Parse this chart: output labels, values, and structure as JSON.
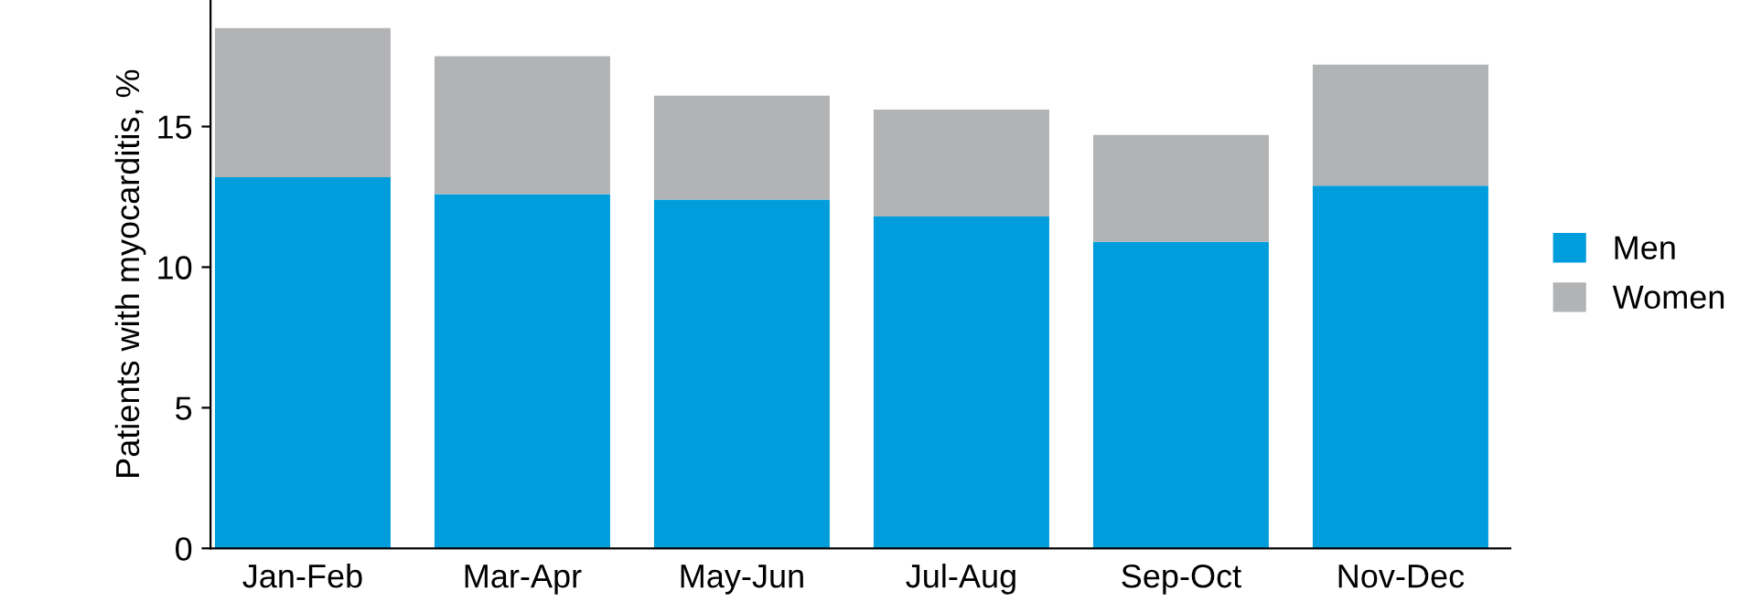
{
  "chart_data": {
    "type": "bar",
    "stacked": true,
    "ylabel": "Patients with myocarditis, %",
    "categories": [
      "Jan-Feb",
      "Mar-Apr",
      "May-Jun",
      "Jul-Aug",
      "Sep-Oct",
      "Nov-Dec"
    ],
    "series": [
      {
        "name": "Men",
        "color": "#009ddc",
        "values": [
          13.2,
          12.6,
          12.4,
          11.8,
          10.9,
          12.9
        ]
      },
      {
        "name": "Women",
        "color": "#b2b3b5",
        "values": [
          5.3,
          4.9,
          3.7,
          3.8,
          3.8,
          4.3
        ]
      }
    ],
    "ylim": [
      0,
      19.5
    ],
    "yticks": [
      0,
      5,
      10,
      15
    ],
    "grid": false,
    "legend": "right"
  }
}
